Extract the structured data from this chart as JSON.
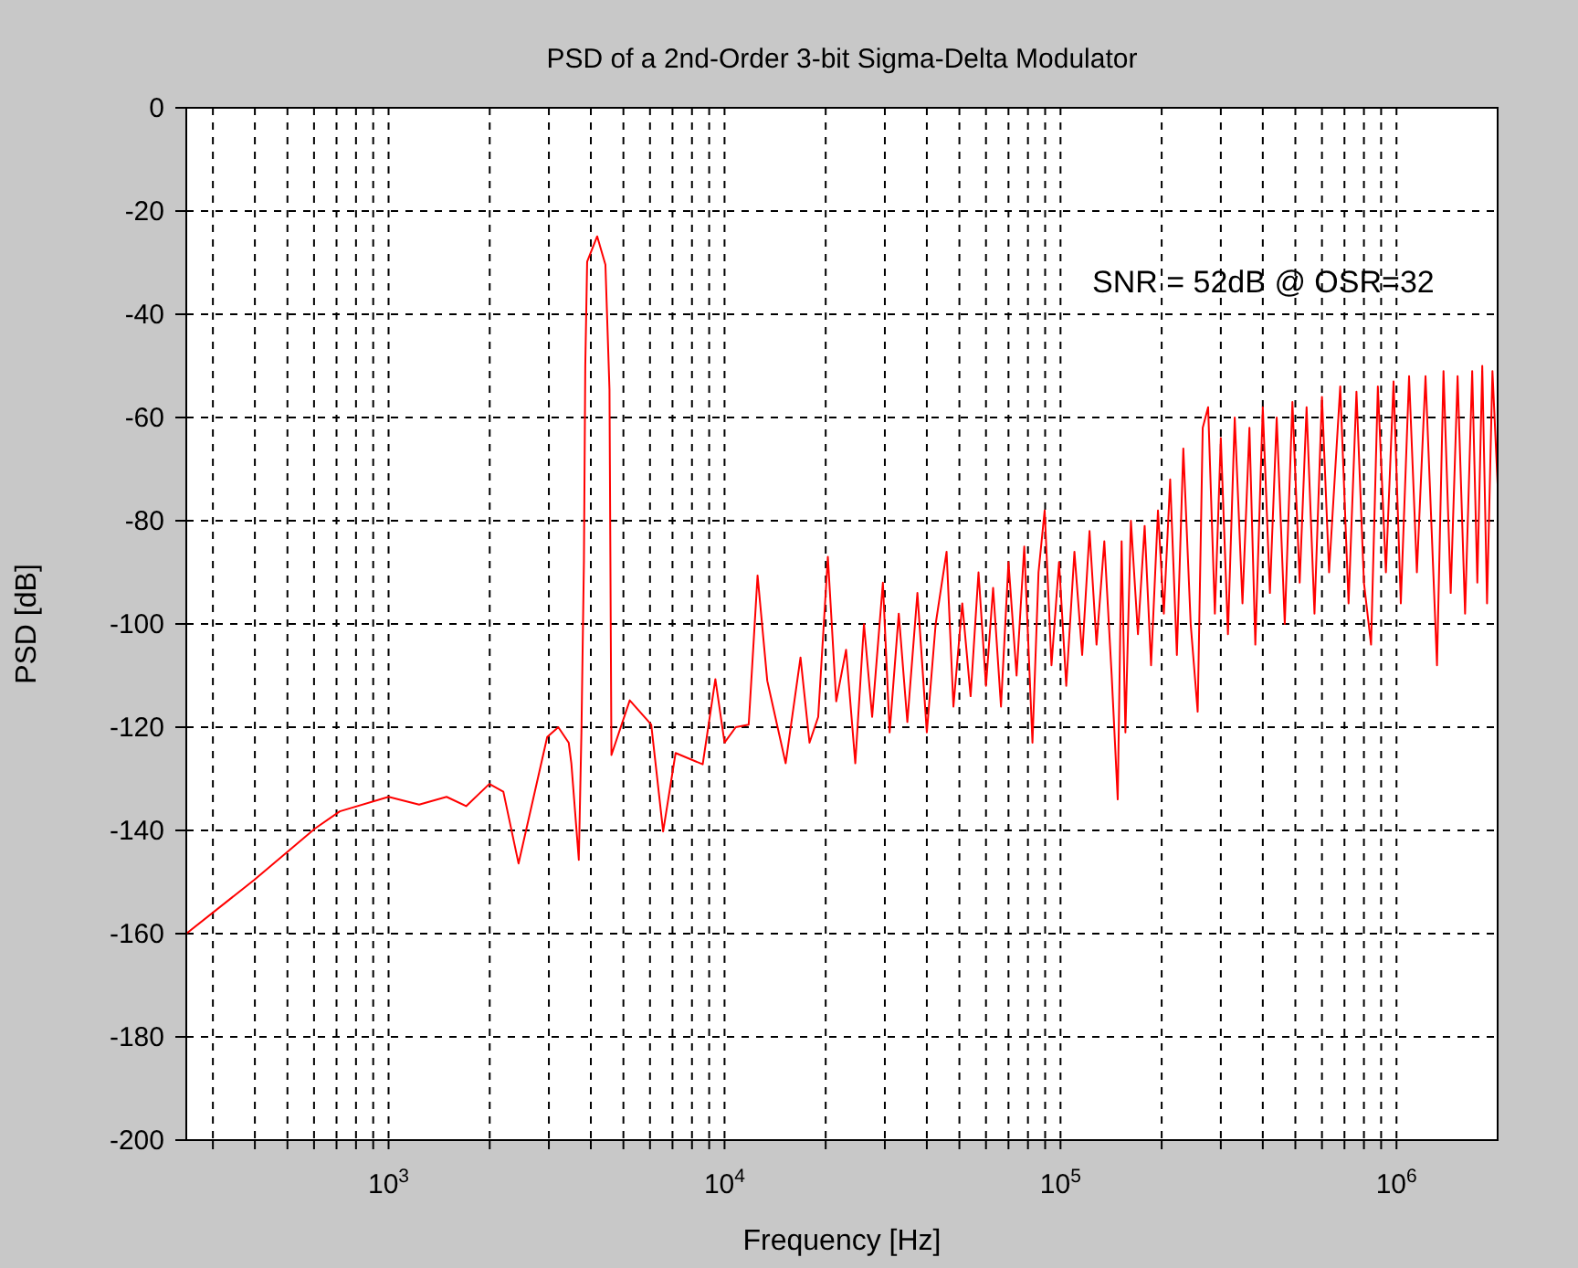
{
  "chart_data": {
    "type": "line",
    "title": "PSD of a 2nd-Order 3-bit Sigma-Delta Modulator",
    "xlabel": "Frequency [Hz]",
    "ylabel": "PSD [dB]",
    "annotations": [
      "SNR = 52dB @ OSR=32"
    ],
    "log": "x",
    "grid": true,
    "marker": "none",
    "line_style": "solid",
    "xlim": [
      250,
      2000000
    ],
    "ylim": [
      -200,
      0
    ],
    "xticks": [
      {
        "value": 300,
        "label": null
      },
      {
        "value": 400,
        "label": null
      },
      {
        "value": 500,
        "label": null
      },
      {
        "value": 600,
        "label": null
      },
      {
        "value": 700,
        "label": null
      },
      {
        "value": 800,
        "label": null
      },
      {
        "value": 900,
        "label": null
      },
      {
        "value": 1000,
        "label": "10$^{3}$"
      },
      {
        "value": 2000,
        "label": null
      },
      {
        "value": 3000,
        "label": null
      },
      {
        "value": 4000,
        "label": null
      },
      {
        "value": 5000,
        "label": null
      },
      {
        "value": 6000,
        "label": null
      },
      {
        "value": 7000,
        "label": null
      },
      {
        "value": 8000,
        "label": null
      },
      {
        "value": 9000,
        "label": null
      },
      {
        "value": 10000,
        "label": "10$^{4}$"
      },
      {
        "value": 20000,
        "label": null
      },
      {
        "value": 30000,
        "label": null
      },
      {
        "value": 40000,
        "label": null
      },
      {
        "value": 50000,
        "label": null
      },
      {
        "value": 60000,
        "label": null
      },
      {
        "value": 70000,
        "label": null
      },
      {
        "value": 80000,
        "label": null
      },
      {
        "value": 90000,
        "label": null
      },
      {
        "value": 100000,
        "label": "10$^{5}$"
      },
      {
        "value": 200000,
        "label": null
      },
      {
        "value": 300000,
        "label": null
      },
      {
        "value": 400000,
        "label": null
      },
      {
        "value": 500000,
        "label": null
      },
      {
        "value": 600000,
        "label": null
      },
      {
        "value": 700000,
        "label": null
      },
      {
        "value": 800000,
        "label": null
      },
      {
        "value": 900000,
        "label": null
      },
      {
        "value": 1000000,
        "label": "10$^{6}$"
      }
    ],
    "yticks": [
      0,
      -20,
      -40,
      -60,
      -80,
      -100,
      -120,
      -140,
      -160,
      -180,
      -200
    ],
    "series": [
      {
        "color": "#ff0000",
        "x": [
          250,
          398,
          605,
          716,
          1000,
          1233,
          1488,
          1702,
          1995,
          2196,
          2437,
          2966,
          3200,
          3437,
          3500,
          3683,
          3750,
          3815,
          3850,
          3900,
          4178,
          4420,
          4545,
          4606,
          5222,
          6050,
          6565,
          7150,
          8610,
          9390,
          10000,
          10800,
          11800,
          12540,
          13400,
          15200,
          16830,
          17900,
          19000,
          20300,
          21500,
          23000,
          24500,
          26000,
          27500,
          29600,
          31000,
          33000,
          35000,
          37500,
          40000,
          42500,
          45800,
          48000,
          51000,
          54000,
          57000,
          60000,
          63000,
          66500,
          70000,
          74000,
          78000,
          82500,
          86000,
          89700,
          94000,
          99000,
          104000,
          110000,
          116000,
          122000,
          128000,
          135000,
          142000,
          148000,
          152000,
          156000,
          162000,
          170000,
          178000,
          186000,
          195000,
          203000,
          212000,
          222000,
          232000,
          244000,
          256000,
          265000,
          275000,
          288000,
          300000,
          315000,
          330000,
          348000,
          365000,
          380000,
          400000,
          420000,
          440000,
          465000,
          490000,
          515000,
          540000,
          570000,
          600000,
          630000,
          680000,
          720000,
          760000,
          800000,
          840000,
          880000,
          930000,
          980000,
          1030000,
          1090000,
          1150000,
          1220000,
          1320000,
          1380000,
          1450000,
          1520000,
          1600000,
          1680000,
          1740000,
          1800000,
          1860000,
          1930000,
          2000000
        ],
        "values": [
          -160,
          -149.6,
          -139.6,
          -136.3,
          -133.5,
          -135,
          -133.5,
          -135.3,
          -131,
          -132.5,
          -146.4,
          -121.9,
          -120,
          -123,
          -127,
          -145.7,
          -121,
          -87.7,
          -50,
          -29.8,
          -24.9,
          -30.4,
          -54.6,
          -125.4,
          -114.8,
          -119.5,
          -140.2,
          -125,
          -127.2,
          -110.7,
          -123,
          -120,
          -119.5,
          -90.6,
          -111,
          -127,
          -106.5,
          -123,
          -118,
          -87,
          -115,
          -105,
          -127,
          -100,
          -118,
          -92,
          -121,
          -98,
          -119,
          -94,
          -121,
          -100,
          -86,
          -116,
          -96,
          -114,
          -90,
          -112,
          -93,
          -116,
          -88,
          -110,
          -85,
          -123,
          -90,
          -78,
          -108,
          -88,
          -112,
          -86,
          -106,
          -82,
          -104,
          -84,
          -110,
          -134,
          -84,
          -121,
          -80,
          -102,
          -81,
          -108,
          -78,
          -98,
          -72,
          -106,
          -66,
          -100,
          -117,
          -62,
          -58,
          -98,
          -64,
          -102,
          -60,
          -96,
          -62,
          -104,
          -58,
          -94,
          -60,
          -100,
          -57,
          -92,
          -58,
          -98,
          -56,
          -90,
          -54,
          -96,
          -55,
          -92,
          -104,
          -54,
          -90,
          -53,
          -96,
          -52,
          -90,
          -52,
          -108,
          -51,
          -94,
          -52,
          -98,
          -51,
          -92,
          -50,
          -96,
          -51,
          -73
        ]
      }
    ]
  }
}
